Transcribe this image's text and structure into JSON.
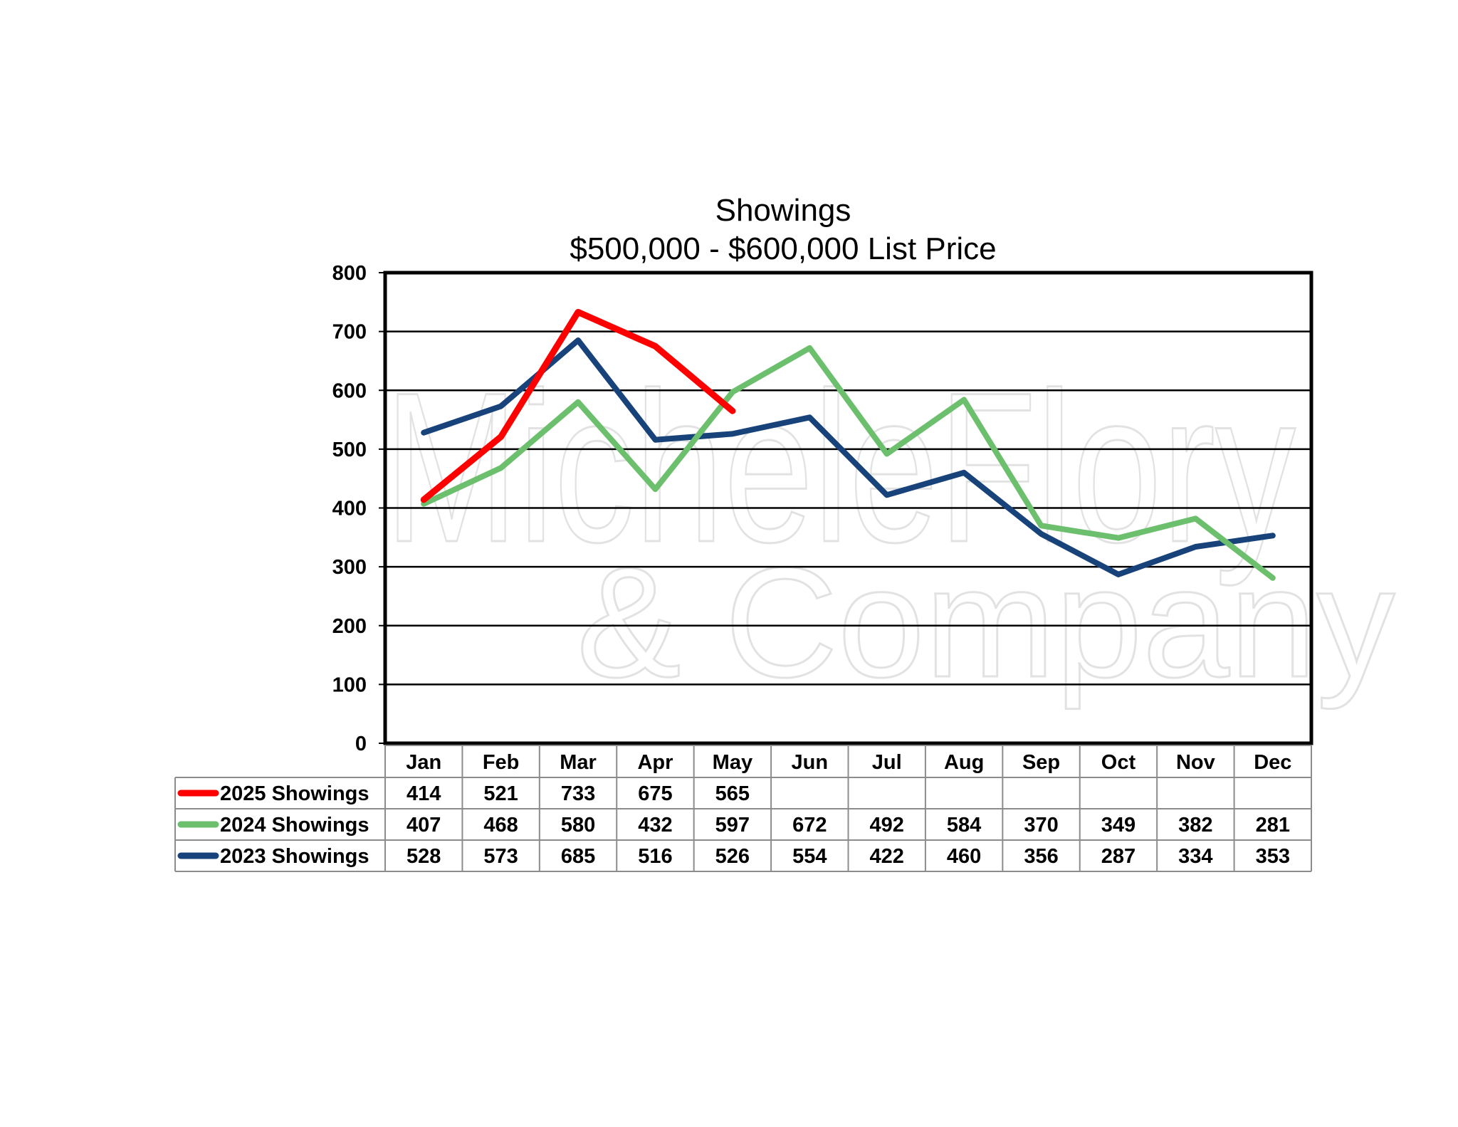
{
  "chart_data": {
    "type": "line",
    "title": "Showings",
    "subtitle": "$500,000 - $600,000 List Price",
    "categories": [
      "Jan",
      "Feb",
      "Mar",
      "Apr",
      "May",
      "Jun",
      "Jul",
      "Aug",
      "Sep",
      "Oct",
      "Nov",
      "Dec"
    ],
    "ylim": [
      0,
      800
    ],
    "yticks": [
      0,
      100,
      200,
      300,
      400,
      500,
      600,
      700,
      800
    ],
    "grid": true,
    "legend": "data-table-below",
    "series": [
      {
        "name": "2025 Showings",
        "color": "#ff0000",
        "values": [
          414,
          521,
          733,
          675,
          565,
          null,
          null,
          null,
          null,
          null,
          null,
          null
        ]
      },
      {
        "name": "2024 Showings",
        "color": "#6cbf6c",
        "values": [
          407,
          468,
          580,
          432,
          597,
          672,
          492,
          584,
          370,
          349,
          382,
          281
        ]
      },
      {
        "name": "2023 Showings",
        "color": "#17427a",
        "values": [
          528,
          573,
          685,
          516,
          526,
          554,
          422,
          460,
          356,
          287,
          334,
          353
        ]
      }
    ]
  },
  "watermark": {
    "line1": "MicheleFlory",
    "line2": "& Company"
  }
}
